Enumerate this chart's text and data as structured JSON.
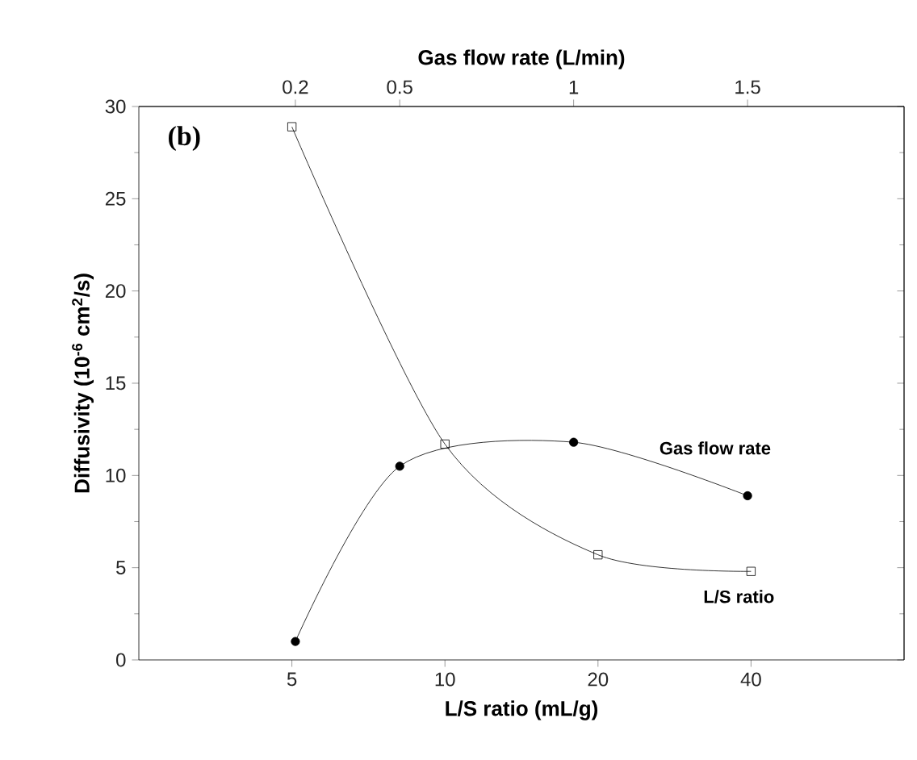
{
  "chart_data": {
    "type": "line",
    "xlabel": "L/S ratio (mL/g)",
    "x2label": "Gas flow rate (L/min)",
    "ylabel": "Diffusivity (10$^{-6}$ cm$^{2}$/s)",
    "categories": [
      "5",
      "10",
      "20",
      "40"
    ],
    "x2lim": [
      -0.25,
      1.95
    ],
    "x2ticks": [
      0.2,
      0.5,
      1,
      1.5
    ],
    "ylim": [
      0,
      30
    ],
    "yticks": [
      0,
      5,
      10,
      15,
      20,
      25,
      30
    ],
    "line_style": "solid",
    "series": [
      {
        "name": "L/S ratio",
        "color": "#000000",
        "marker": "square",
        "values": [
          28.9,
          11.7,
          5.7,
          4.8
        ]
      },
      {
        "name": "Gas flow rate",
        "color": "#000000",
        "marker": "circle",
        "axis": "x2",
        "x": [
          0.2,
          0.5,
          1,
          1.5
        ],
        "values": [
          1.0,
          10.5,
          11.8,
          8.9
        ]
      }
    ],
    "annotations": [
      "(b)"
    ]
  }
}
